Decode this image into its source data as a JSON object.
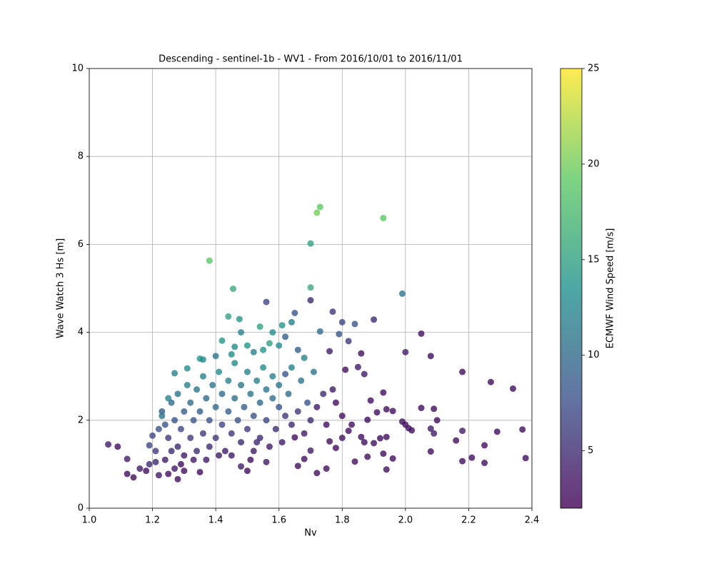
{
  "chart_data": {
    "type": "scatter",
    "title": "Descending - sentinel-1b - WV1 - From 2016/10/01 to 2016/11/01",
    "xlabel": "Nv",
    "ylabel": "Wave Watch 3 Hs [m]",
    "xlim": [
      1.0,
      2.4
    ],
    "ylim": [
      0,
      10
    ],
    "xticks": [
      {
        "value": 1.0,
        "label": "1.0"
      },
      1.2,
      1.4,
      1.6,
      1.8,
      {
        "value": 2.0,
        "label": "2.0"
      },
      2.2,
      2.4
    ],
    "yticks": [
      0,
      2,
      4,
      6,
      8,
      10
    ],
    "grid": true,
    "colormap": "viridis",
    "alpha": 0.8,
    "colorbar": {
      "label": "ECMWF Wind Speed [m/s]",
      "lim": [
        2,
        25
      ],
      "ticks": [
        5,
        10,
        15,
        20,
        25
      ]
    },
    "x": [
      1.38,
      1.72,
      1.73,
      1.93,
      1.7,
      1.455,
      1.7,
      1.99,
      1.56,
      1.7,
      1.44,
      1.475,
      1.54,
      1.61,
      1.64,
      1.65,
      1.77,
      1.8,
      1.84,
      1.9,
      1.73,
      1.79,
      2.05,
      2.0,
      2.08,
      1.82,
      1.76,
      1.86,
      1.85,
      1.81,
      1.87,
      2.18,
      2.27,
      2.34,
      1.93,
      1.94,
      1.96,
      2.05,
      2.09,
      1.89,
      1.91,
      1.88,
      1.99,
      2.0,
      2.01,
      2.02,
      2.1,
      2.08,
      2.09,
      2.16,
      2.18,
      2.21,
      2.25,
      2.25,
      2.29,
      2.37,
      2.38,
      2.18,
      2.08,
      1.96,
      1.94,
      1.93,
      1.92,
      1.94,
      1.9,
      1.87,
      1.84,
      1.86,
      1.88,
      1.82,
      1.8,
      1.78,
      1.76,
      1.75,
      1.72,
      1.7,
      1.68,
      1.66,
      1.65,
      1.06,
      1.09,
      1.12,
      1.12,
      1.14,
      1.16,
      1.18,
      1.19,
      1.2,
      1.19,
      1.21,
      1.22,
      1.25,
      1.28,
      1.3,
      1.35,
      1.48,
      1.5,
      1.56,
      1.21,
      1.22,
      1.24,
      1.26,
      1.27,
      1.29,
      1.33,
      1.37,
      1.41,
      1.45,
      1.51,
      1.53,
      1.23,
      1.24,
      1.25,
      1.26,
      1.27,
      1.28,
      1.28,
      1.29,
      1.3,
      1.3,
      1.31,
      1.32,
      1.32,
      1.33,
      1.34,
      1.34,
      1.35,
      1.36,
      1.36,
      1.37,
      1.38,
      1.38,
      1.39,
      1.4,
      1.4,
      1.41,
      1.42,
      1.42,
      1.43,
      1.44,
      1.44,
      1.45,
      1.46,
      1.46,
      1.47,
      1.48,
      1.48,
      1.49,
      1.5,
      1.5,
      1.51,
      1.52,
      1.52,
      1.53,
      1.54,
      1.54,
      1.55,
      1.56,
      1.56,
      1.57,
      1.58,
      1.58,
      1.59,
      1.6,
      1.6,
      1.61,
      1.62,
      1.63,
      1.64,
      1.64,
      1.66,
      1.67,
      1.68,
      1.69,
      1.7,
      1.71,
      1.72,
      1.74,
      1.75,
      1.77,
      1.78,
      1.8,
      1.83,
      1.25,
      1.23,
      1.35,
      1.45,
      1.5,
      1.57,
      1.6,
      1.27,
      1.31,
      1.36,
      1.4,
      1.42,
      1.46,
      1.48,
      1.52,
      1.55,
      1.58,
      1.62,
      1.66,
      1.68,
      1.62
    ],
    "y": [
      5.63,
      6.72,
      6.85,
      6.6,
      6.02,
      4.99,
      5.02,
      4.88,
      4.69,
      4.73,
      4.36,
      4.3,
      4.13,
      4.16,
      4.23,
      4.44,
      4.47,
      4.23,
      4.19,
      4.29,
      4.02,
      3.96,
      3.97,
      3.55,
      3.46,
      3.8,
      3.57,
      3.52,
      3.21,
      3.15,
      3.05,
      3.1,
      2.87,
      2.72,
      2.63,
      2.25,
      2.21,
      2.28,
      2.26,
      2.45,
      2.18,
      2.01,
      1.97,
      1.9,
      1.82,
      1.77,
      2.0,
      1.81,
      1.7,
      1.54,
      1.76,
      1.15,
      1.03,
      1.43,
      1.74,
      1.79,
      1.14,
      1.07,
      1.29,
      1.13,
      0.88,
      1.24,
      1.59,
      1.62,
      1.48,
      1.5,
      1.06,
      1.62,
      1.17,
      1.76,
      1.6,
      1.37,
      1.52,
      0.9,
      0.8,
      1.31,
      1.12,
      0.96,
      1.61,
      1.45,
      1.4,
      1.12,
      0.78,
      0.7,
      0.9,
      0.85,
      1.0,
      1.65,
      1.43,
      1.05,
      0.75,
      0.78,
      0.66,
      0.85,
      0.82,
      0.95,
      0.85,
      1.05,
      1.3,
      1.8,
      1.1,
      1.3,
      0.9,
      1.0,
      1.1,
      1.1,
      1.2,
      1.2,
      1.1,
      1.5,
      2.2,
      1.9,
      1.6,
      2.4,
      2.0,
      1.4,
      2.6,
      1.8,
      2.2,
      1.2,
      2.8,
      1.6,
      2.4,
      2.0,
      1.3,
      2.7,
      2.2,
      1.7,
      3.0,
      2.5,
      1.4,
      2.0,
      2.8,
      2.3,
      1.6,
      3.1,
      2.6,
      1.9,
      1.3,
      2.2,
      2.9,
      1.7,
      2.5,
      3.3,
      2.0,
      2.8,
      1.5,
      2.3,
      3.1,
      1.8,
      2.6,
      2.1,
      1.3,
      2.9,
      2.4,
      1.6,
      3.2,
      2.0,
      2.7,
      1.4,
      2.5,
      3.0,
      1.8,
      2.3,
      2.8,
      1.5,
      2.1,
      2.6,
      1.9,
      3.2,
      2.2,
      2.9,
      1.7,
      2.4,
      2.0,
      3.1,
      2.3,
      2.6,
      1.9,
      2.7,
      2.4,
      2.1,
      1.9,
      2.5,
      2.1,
      3.4,
      3.5,
      3.7,
      3.75,
      3.7,
      3.07,
      3.18,
      3.38,
      3.46,
      3.81,
      3.67,
      4.0,
      3.55,
      3.6,
      4.0,
      3.9,
      3.6,
      3.42,
      3.05
    ],
    "color_values": [
      19,
      20,
      19,
      19,
      15,
      16,
      16,
      11,
      7,
      5,
      15,
      14,
      15,
      14,
      12,
      8,
      6,
      7,
      8,
      5,
      10,
      8,
      3,
      4,
      3,
      6,
      4,
      3,
      4,
      3,
      4,
      3,
      3,
      3,
      3,
      3,
      3,
      3,
      3,
      3,
      3,
      3,
      3,
      3,
      3,
      3,
      3,
      4,
      4,
      3,
      4,
      3,
      3,
      3,
      3,
      3,
      3,
      3,
      3,
      3,
      3,
      3,
      3,
      3,
      3,
      3,
      3,
      3,
      3,
      3,
      3,
      3,
      3,
      3,
      3,
      4,
      3,
      3,
      3,
      4,
      3,
      4,
      3,
      3,
      4,
      3,
      5,
      7,
      7,
      5,
      4,
      3,
      3,
      3,
      3,
      4,
      3,
      4,
      6,
      8,
      4,
      5,
      4,
      3,
      4,
      4,
      4,
      4,
      3,
      5,
      9,
      8,
      6,
      10,
      8,
      5,
      11,
      7,
      9,
      4,
      12,
      6,
      10,
      8,
      5,
      11,
      9,
      6,
      12,
      10,
      5,
      8,
      11,
      10,
      6,
      13,
      10,
      7,
      4,
      9,
      12,
      6,
      10,
      13,
      8,
      11,
      5,
      9,
      12,
      6,
      11,
      8,
      4,
      12,
      10,
      5,
      13,
      7,
      11,
      4,
      10,
      12,
      5,
      8,
      11,
      4,
      6,
      10,
      5,
      12,
      6,
      11,
      4,
      8,
      5,
      11,
      4,
      5,
      3,
      4,
      3,
      3,
      3,
      12,
      11,
      14,
      13,
      14,
      15,
      13,
      12,
      13,
      13,
      11,
      14,
      13,
      12,
      12,
      14,
      13,
      9,
      9,
      12,
      8
    ]
  }
}
